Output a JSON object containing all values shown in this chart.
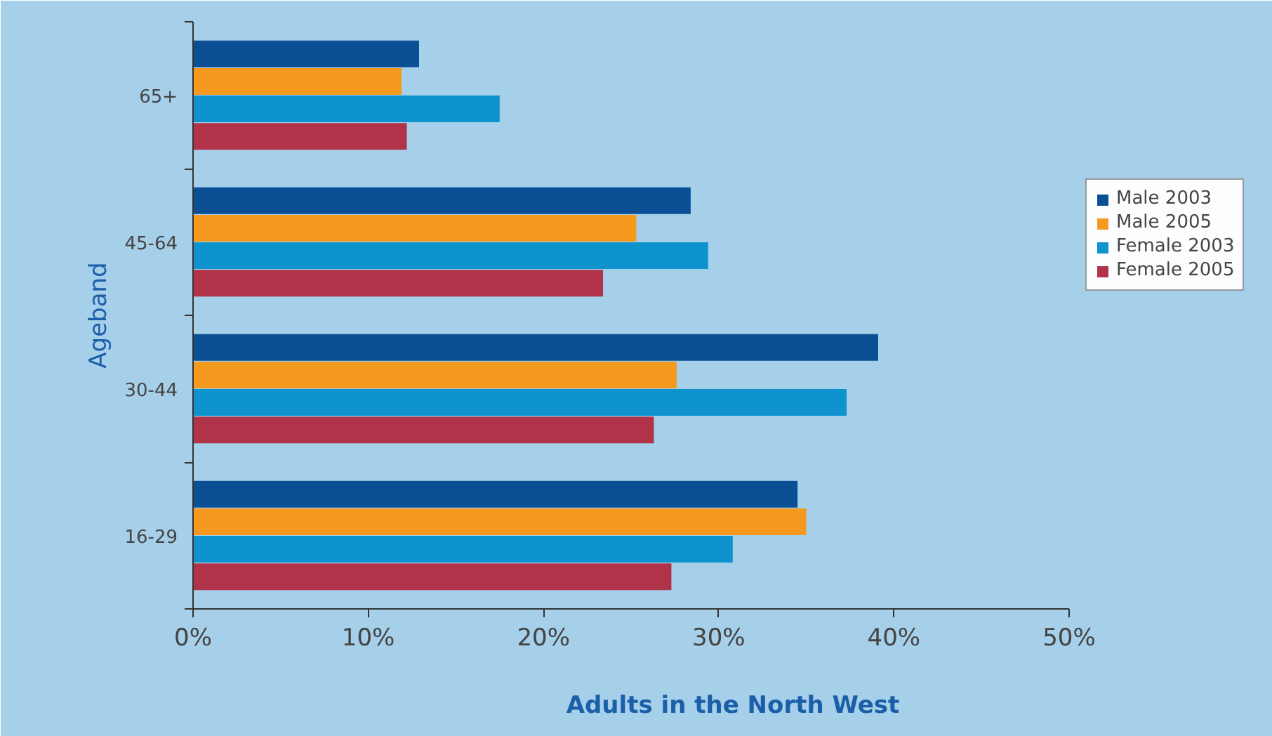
{
  "chart_data": {
    "type": "bar",
    "orientation": "horizontal",
    "xlabel": "Adults in the North West",
    "ylabel": "Ageband",
    "categories": [
      "65+",
      "45-64",
      "30-44",
      "16-29"
    ],
    "series": [
      {
        "name": "Male 2003",
        "color": "#0a4f94",
        "values": [
          12.9,
          28.4,
          39.1,
          34.5
        ]
      },
      {
        "name": "Male 2005",
        "color": "#f59a1e",
        "values": [
          11.9,
          25.3,
          27.6,
          35.0
        ]
      },
      {
        "name": "Female 2003",
        "color": "#0e93cf",
        "values": [
          17.5,
          29.4,
          37.3,
          30.8
        ]
      },
      {
        "name": "Female 2005",
        "color": "#b0334a",
        "values": [
          12.2,
          23.4,
          26.3,
          27.3
        ]
      }
    ],
    "xlim": [
      0,
      50
    ],
    "xticks": [
      {
        "value": 0,
        "label": "0%"
      },
      {
        "value": 10,
        "label": "10%"
      },
      {
        "value": 20,
        "label": "20%"
      },
      {
        "value": 30,
        "label": "30%"
      },
      {
        "value": 40,
        "label": "40%"
      },
      {
        "value": 50,
        "label": "50%"
      }
    ],
    "grid": false,
    "legend": "right"
  }
}
